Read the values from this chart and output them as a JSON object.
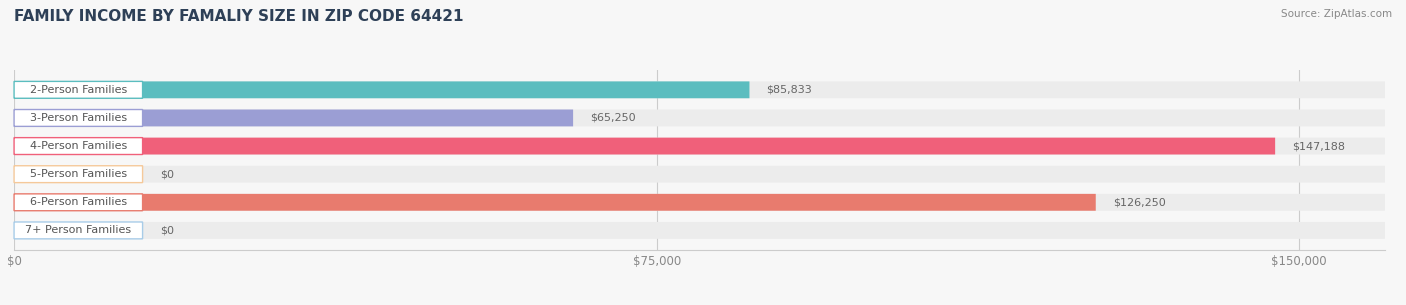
{
  "title": "FAMILY INCOME BY FAMALIY SIZE IN ZIP CODE 64421",
  "source": "Source: ZipAtlas.com",
  "categories": [
    "2-Person Families",
    "3-Person Families",
    "4-Person Families",
    "5-Person Families",
    "6-Person Families",
    "7+ Person Families"
  ],
  "values": [
    85833,
    65250,
    147188,
    0,
    126250,
    0
  ],
  "bar_colors": [
    "#5bbdbf",
    "#9b9ed4",
    "#f0607a",
    "#f5c99a",
    "#e87b6e",
    "#a8cce8"
  ],
  "value_labels": [
    "$85,833",
    "$65,250",
    "$147,188",
    "$0",
    "$126,250",
    "$0"
  ],
  "xlim": [
    0,
    160000
  ],
  "xticks": [
    0,
    75000,
    150000
  ],
  "xticklabels": [
    "$0",
    "$75,000",
    "$150,000"
  ],
  "background_color": "#f7f7f7",
  "bar_bg_color": "#ececec",
  "title_color": "#2e4057",
  "title_fontsize": 11,
  "bar_height": 0.6,
  "label_fontsize": 8.0,
  "value_fontsize": 8.0
}
